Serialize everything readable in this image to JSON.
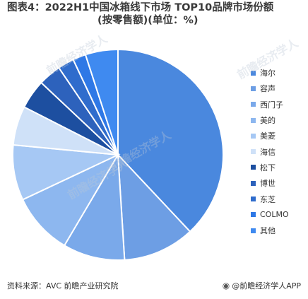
{
  "title_line1": "图表4：2022H1中国冰箱线下市场 TOP10品牌市场份额",
  "title_line2": "(按零售额)(单位：%)",
  "watermark_text": "前瞻经济学人",
  "footer": {
    "source": "资料来源：AVC 前瞻产业研究院",
    "brand_icon": "circle-logo-icon",
    "brand": "@前瞻经济学人APP"
  },
  "chart_data": {
    "type": "pie",
    "title": "2022H1中国冰箱线下市场 TOP10品牌市场份额 (按零售额)(单位：%)",
    "start_angle_deg": 0,
    "direction": "clockwise",
    "legend_position": "right",
    "slices": [
      {
        "label": "海尔",
        "value": 38.0,
        "color": "#4a88de"
      },
      {
        "label": "容声",
        "value": 11.0,
        "color": "#6d9ee4"
      },
      {
        "label": "西门子",
        "value": 9.5,
        "color": "#7aa9ea"
      },
      {
        "label": "美的",
        "value": 9.5,
        "color": "#8db7ef"
      },
      {
        "label": "美菱",
        "value": 8.5,
        "color": "#a6c8f4"
      },
      {
        "label": "海信",
        "value": 6.0,
        "color": "#cfe1f8"
      },
      {
        "label": "松下",
        "value": 4.5,
        "color": "#1d4fa0"
      },
      {
        "label": "博世",
        "value": 3.5,
        "color": "#2d62bc"
      },
      {
        "label": "东芝",
        "value": 2.5,
        "color": "#2f6ccc"
      },
      {
        "label": "COLMO",
        "value": 2.0,
        "color": "#2e78e6"
      },
      {
        "label": "其他",
        "value": 5.0,
        "color": "#3f8af0"
      }
    ]
  }
}
